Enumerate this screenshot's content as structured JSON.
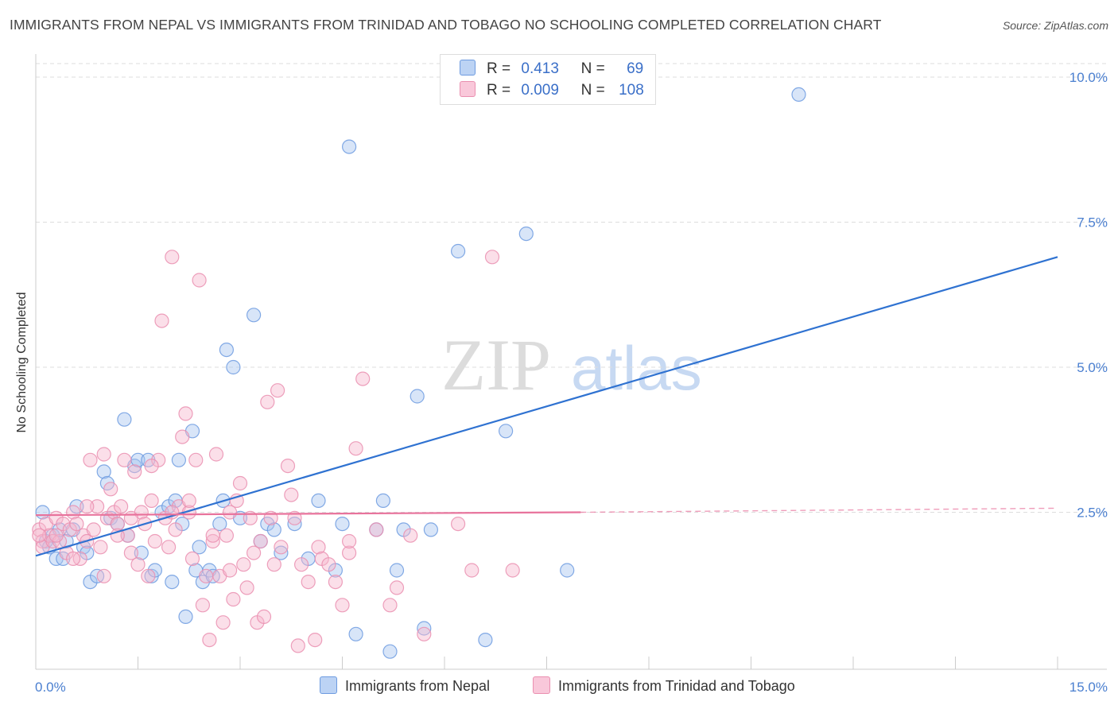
{
  "title": "IMMIGRANTS FROM NEPAL VS IMMIGRANTS FROM TRINIDAD AND TOBAGO NO SCHOOLING COMPLETED CORRELATION CHART",
  "source": "Source: ZipAtlas.com",
  "watermark": {
    "zip": "ZIP",
    "atlas": "atlas"
  },
  "legend": {
    "nepal": {
      "r_label": "R =",
      "r_value": "0.413",
      "n_label": "N =",
      "n_value": "69"
    },
    "trinidad": {
      "r_label": "R =",
      "r_value": "0.009",
      "n_label": "N =",
      "n_value": "108"
    }
  },
  "colors": {
    "nepal_fill": "#a9c6f0",
    "nepal_stroke": "#6d9be0",
    "nepal_line": "#2f72d1",
    "trinidad_fill": "#f7b9cf",
    "trinidad_stroke": "#ea8fb0",
    "trinidad_line": "#e8739c",
    "tick": "#4a7fd0",
    "grid": "#dddddd"
  },
  "chart_data": {
    "type": "scatter",
    "xlabel": "",
    "ylabel": "No Schooling Completed",
    "xlim": [
      0,
      15
    ],
    "ylim": [
      0,
      10.5
    ],
    "x_tick_labels": [
      "0.0%",
      "15.0%"
    ],
    "y_ticks": [
      2.5,
      5.0,
      7.5,
      10.0
    ],
    "y_tick_labels": [
      "2.5%",
      "5.0%",
      "7.5%",
      "10.0%"
    ],
    "grid": "horizontal-dashed",
    "legend_position": "top-center",
    "series": [
      {
        "name": "Immigrants from Nepal",
        "trend": {
          "x": [
            0,
            15
          ],
          "y": [
            1.75,
            6.9
          ],
          "dashed_from": null
        },
        "points": [
          [
            0.1,
            2.5
          ],
          [
            0.15,
            2.0
          ],
          [
            0.2,
            1.9
          ],
          [
            0.25,
            2.1
          ],
          [
            0.3,
            1.7
          ],
          [
            0.35,
            2.2
          ],
          [
            0.4,
            1.7
          ],
          [
            0.45,
            2.0
          ],
          [
            0.55,
            2.2
          ],
          [
            0.6,
            2.6
          ],
          [
            0.7,
            1.9
          ],
          [
            0.75,
            1.8
          ],
          [
            0.8,
            1.3
          ],
          [
            0.9,
            1.4
          ],
          [
            1.0,
            3.2
          ],
          [
            1.05,
            3.0
          ],
          [
            1.1,
            2.4
          ],
          [
            1.2,
            2.3
          ],
          [
            1.3,
            4.1
          ],
          [
            1.35,
            2.1
          ],
          [
            1.45,
            3.3
          ],
          [
            1.5,
            3.4
          ],
          [
            1.55,
            1.8
          ],
          [
            1.65,
            3.4
          ],
          [
            1.7,
            1.4
          ],
          [
            1.75,
            1.5
          ],
          [
            1.85,
            2.5
          ],
          [
            1.95,
            2.6
          ],
          [
            2.0,
            1.3
          ],
          [
            2.05,
            2.7
          ],
          [
            2.1,
            3.4
          ],
          [
            2.15,
            2.3
          ],
          [
            2.2,
            0.7
          ],
          [
            2.3,
            3.9
          ],
          [
            2.35,
            1.5
          ],
          [
            2.4,
            1.9
          ],
          [
            2.45,
            1.3
          ],
          [
            2.55,
            1.5
          ],
          [
            2.6,
            1.4
          ],
          [
            2.7,
            2.3
          ],
          [
            2.75,
            2.7
          ],
          [
            2.8,
            5.3
          ],
          [
            2.9,
            5.0
          ],
          [
            3.0,
            2.4
          ],
          [
            3.2,
            5.9
          ],
          [
            3.3,
            2.0
          ],
          [
            3.4,
            2.3
          ],
          [
            3.5,
            2.2
          ],
          [
            3.6,
            1.8
          ],
          [
            3.8,
            2.3
          ],
          [
            4.0,
            1.7
          ],
          [
            4.15,
            2.7
          ],
          [
            4.4,
            1.5
          ],
          [
            4.5,
            2.3
          ],
          [
            4.6,
            8.8
          ],
          [
            4.7,
            0.4
          ],
          [
            5.0,
            2.2
          ],
          [
            5.1,
            2.7
          ],
          [
            5.2,
            0.1
          ],
          [
            5.3,
            1.5
          ],
          [
            5.4,
            2.2
          ],
          [
            5.6,
            4.5
          ],
          [
            5.7,
            0.5
          ],
          [
            5.8,
            2.2
          ],
          [
            6.2,
            7.0
          ],
          [
            6.6,
            0.3
          ],
          [
            6.9,
            3.9
          ],
          [
            7.2,
            7.3
          ],
          [
            7.8,
            1.5
          ],
          [
            11.2,
            9.7
          ]
        ]
      },
      {
        "name": "Immigrants from Trinidad and Tobago",
        "trend": {
          "x": [
            0,
            8.0,
            15
          ],
          "y": [
            2.45,
            2.5,
            2.57
          ],
          "dashed_from": 8.0
        },
        "points": [
          [
            0.05,
            2.2
          ],
          [
            0.1,
            2.0
          ],
          [
            0.1,
            1.9
          ],
          [
            0.15,
            2.3
          ],
          [
            0.2,
            2.1
          ],
          [
            0.25,
            2.0
          ],
          [
            0.3,
            2.4
          ],
          [
            0.35,
            2.0
          ],
          [
            0.4,
            2.3
          ],
          [
            0.45,
            1.8
          ],
          [
            0.5,
            2.2
          ],
          [
            0.55,
            2.5
          ],
          [
            0.6,
            2.3
          ],
          [
            0.65,
            1.7
          ],
          [
            0.7,
            2.1
          ],
          [
            0.75,
            2.0
          ],
          [
            0.8,
            3.4
          ],
          [
            0.85,
            2.2
          ],
          [
            0.9,
            2.6
          ],
          [
            0.95,
            1.9
          ],
          [
            1.0,
            3.5
          ],
          [
            1.05,
            2.4
          ],
          [
            1.1,
            2.9
          ],
          [
            1.15,
            2.5
          ],
          [
            1.2,
            2.3
          ],
          [
            1.25,
            2.6
          ],
          [
            1.3,
            3.4
          ],
          [
            1.35,
            2.1
          ],
          [
            1.4,
            1.8
          ],
          [
            1.45,
            3.2
          ],
          [
            1.5,
            1.6
          ],
          [
            1.55,
            2.5
          ],
          [
            1.6,
            2.3
          ],
          [
            1.65,
            1.4
          ],
          [
            1.7,
            2.7
          ],
          [
            1.75,
            2.0
          ],
          [
            1.8,
            3.4
          ],
          [
            1.85,
            5.8
          ],
          [
            1.9,
            2.4
          ],
          [
            1.95,
            1.9
          ],
          [
            2.0,
            6.9
          ],
          [
            2.05,
            2.2
          ],
          [
            2.1,
            2.6
          ],
          [
            2.15,
            3.8
          ],
          [
            2.2,
            4.2
          ],
          [
            2.25,
            2.5
          ],
          [
            2.3,
            1.7
          ],
          [
            2.35,
            3.4
          ],
          [
            2.4,
            6.5
          ],
          [
            2.45,
            0.9
          ],
          [
            2.5,
            1.4
          ],
          [
            2.55,
            0.3
          ],
          [
            2.6,
            2.0
          ],
          [
            2.65,
            3.5
          ],
          [
            2.7,
            1.4
          ],
          [
            2.75,
            0.6
          ],
          [
            2.8,
            2.1
          ],
          [
            2.85,
            1.5
          ],
          [
            2.9,
            1.0
          ],
          [
            2.95,
            2.7
          ],
          [
            3.0,
            3.0
          ],
          [
            3.05,
            1.6
          ],
          [
            3.1,
            1.2
          ],
          [
            3.15,
            2.4
          ],
          [
            3.2,
            1.8
          ],
          [
            3.25,
            0.6
          ],
          [
            3.3,
            2.0
          ],
          [
            3.35,
            0.7
          ],
          [
            3.4,
            4.4
          ],
          [
            3.5,
            1.6
          ],
          [
            3.55,
            4.6
          ],
          [
            3.6,
            1.9
          ],
          [
            3.7,
            3.3
          ],
          [
            3.75,
            2.8
          ],
          [
            3.8,
            2.4
          ],
          [
            3.85,
            0.2
          ],
          [
            3.9,
            1.6
          ],
          [
            4.0,
            1.3
          ],
          [
            4.1,
            0.3
          ],
          [
            4.15,
            1.9
          ],
          [
            4.2,
            1.7
          ],
          [
            4.3,
            1.6
          ],
          [
            4.4,
            1.3
          ],
          [
            4.5,
            0.9
          ],
          [
            4.6,
            1.8
          ],
          [
            4.7,
            3.6
          ],
          [
            4.8,
            4.8
          ],
          [
            5.0,
            2.2
          ],
          [
            5.2,
            0.9
          ],
          [
            5.3,
            1.2
          ],
          [
            5.5,
            2.1
          ],
          [
            5.7,
            0.4
          ],
          [
            6.2,
            2.3
          ],
          [
            6.4,
            1.5
          ],
          [
            6.7,
            6.9
          ],
          [
            7.0,
            1.5
          ],
          [
            0.05,
            2.1
          ],
          [
            0.3,
            2.1
          ],
          [
            0.55,
            1.7
          ],
          [
            0.75,
            2.6
          ],
          [
            1.0,
            1.4
          ],
          [
            1.2,
            2.1
          ],
          [
            1.4,
            2.4
          ],
          [
            1.7,
            3.3
          ],
          [
            2.0,
            2.5
          ],
          [
            2.25,
            2.7
          ],
          [
            2.6,
            2.1
          ],
          [
            2.85,
            2.5
          ],
          [
            3.45,
            2.4
          ],
          [
            4.6,
            2.0
          ]
        ]
      }
    ]
  },
  "bottom_legend": {
    "nepal": "Immigrants from Nepal",
    "trinidad": "Immigrants from Trinidad and Tobago"
  }
}
